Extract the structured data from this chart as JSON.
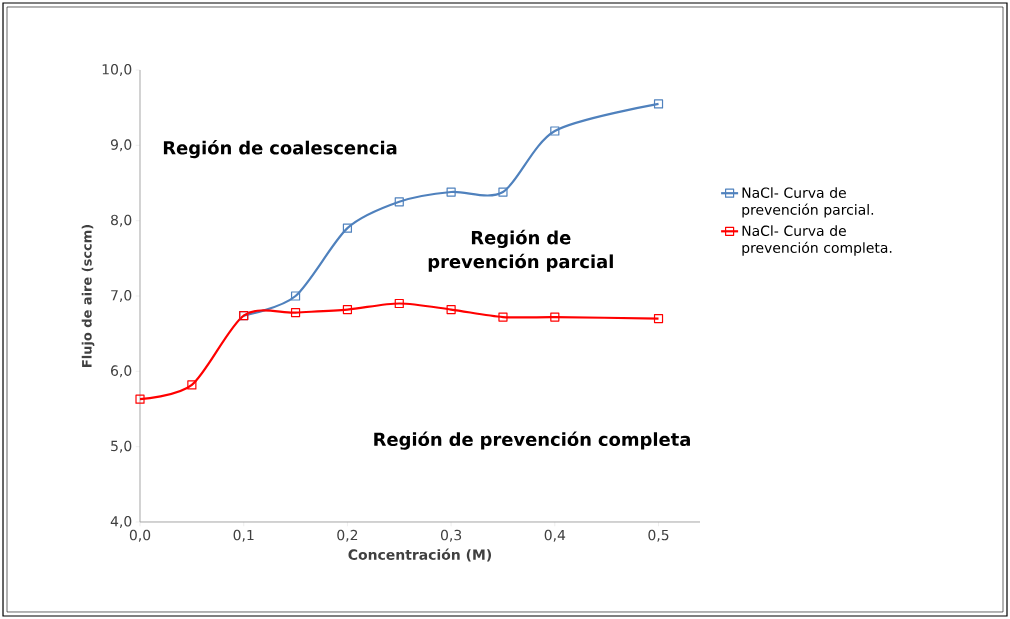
{
  "chart_data": {
    "type": "line",
    "xlabel": "Concentración (M)",
    "ylabel": "Flujo de aire (sccm)",
    "series": [
      {
        "name": "NaCl- Curva de prevención parcial.",
        "color": "#4f81bd",
        "x": [
          0.1,
          0.15,
          0.2,
          0.25,
          0.3,
          0.35,
          0.4,
          0.5
        ],
        "values": [
          6.74,
          7.0,
          7.9,
          8.25,
          8.38,
          8.38,
          9.19,
          9.55
        ]
      },
      {
        "name": "NaCl- Curva de prevención completa.",
        "color": "#ff0000",
        "x": [
          0.0,
          0.05,
          0.1,
          0.15,
          0.2,
          0.25,
          0.3,
          0.35,
          0.4,
          0.5
        ],
        "values": [
          5.63,
          5.82,
          6.74,
          6.78,
          6.82,
          6.9,
          6.82,
          6.72,
          6.72,
          6.7
        ]
      }
    ],
    "xlim": [
      0,
      0.54
    ],
    "ylim": [
      4,
      10
    ],
    "xticks": [
      {
        "value": 0,
        "label": "0,0"
      },
      {
        "value": 0.1,
        "label": "0,1"
      },
      {
        "value": 0.2,
        "label": "0,2"
      },
      {
        "value": 0.3,
        "label": "0,3"
      },
      {
        "value": 0.4,
        "label": "0,4"
      },
      {
        "value": 0.5,
        "label": "0,5"
      }
    ],
    "yticks": [
      {
        "value": 4,
        "label": "4,0"
      },
      {
        "value": 5,
        "label": "5,0"
      },
      {
        "value": 6,
        "label": "6,0"
      },
      {
        "value": 7,
        "label": "7,0"
      },
      {
        "value": 8,
        "label": "8,0"
      },
      {
        "value": 9,
        "label": "9,0"
      },
      {
        "value": 10,
        "label": "10,0"
      }
    ],
    "marker": "square",
    "line_style": "solid",
    "legend": "right",
    "grid": false,
    "annotations": [
      "Región de coalescencia",
      "Región de prevención parcial",
      "Región de prevención completa"
    ]
  }
}
